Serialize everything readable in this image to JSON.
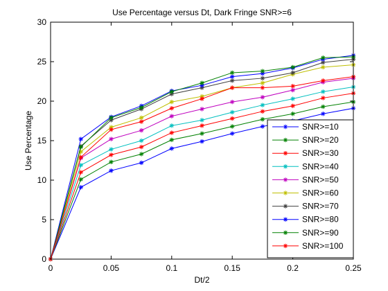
{
  "chart_data": {
    "type": "line",
    "title": "Use Percentage versus Dt, Dark Fringe SNR>=6",
    "xlabel": "Dt/2",
    "ylabel": "Use Percentage",
    "xlim": [
      0,
      0.25
    ],
    "ylim": [
      0,
      30
    ],
    "xticks": [
      "0",
      "0.05",
      "0.1",
      "0.15",
      "0.2",
      "0.25"
    ],
    "yticks": [
      "0",
      "5",
      "10",
      "15",
      "20",
      "25",
      "30"
    ],
    "grid": false,
    "legend_position": "lower-right",
    "marker": "asterisk",
    "x": [
      0,
      0.025,
      0.05,
      0.075,
      0.1,
      0.125,
      0.15,
      0.175,
      0.2,
      0.225,
      0.25
    ],
    "series": [
      {
        "name": "SNR>=10",
        "color": "#0000ff",
        "values": [
          0,
          9.1,
          11.2,
          12.2,
          14.0,
          14.9,
          15.9,
          16.8,
          17.5,
          18.4,
          19.1
        ]
      },
      {
        "name": "SNR>=20",
        "color": "#008000",
        "values": [
          0,
          10.1,
          12.3,
          13.3,
          15.1,
          15.9,
          16.8,
          17.7,
          18.4,
          19.3,
          19.9
        ]
      },
      {
        "name": "SNR>=30",
        "color": "#ff0000",
        "values": [
          0,
          11.0,
          13.2,
          14.2,
          16.0,
          16.9,
          17.8,
          18.7,
          19.4,
          20.4,
          21.0
        ]
      },
      {
        "name": "SNR>=40",
        "color": "#00bfbf",
        "values": [
          0,
          11.9,
          13.9,
          15.0,
          16.9,
          17.6,
          18.6,
          19.5,
          20.3,
          21.2,
          21.8
        ]
      },
      {
        "name": "SNR>=50",
        "color": "#bf00bf",
        "values": [
          0,
          12.8,
          15.2,
          16.3,
          18.1,
          19.0,
          19.9,
          20.5,
          21.4,
          22.4,
          22.9
        ]
      },
      {
        "name": "SNR>=60",
        "color": "#bfbf00",
        "values": [
          0,
          13.6,
          16.7,
          17.9,
          19.9,
          20.6,
          21.7,
          22.3,
          23.4,
          24.3,
          24.6
        ]
      },
      {
        "name": "SNR>=70",
        "color": "#404040",
        "values": [
          0,
          14.3,
          17.6,
          19.0,
          20.9,
          21.7,
          22.6,
          22.9,
          23.6,
          24.9,
          25.3
        ]
      },
      {
        "name": "SNR>=80",
        "color": "#0000ff",
        "values": [
          0,
          15.2,
          18.0,
          19.4,
          21.3,
          22.0,
          23.1,
          23.5,
          24.2,
          25.3,
          25.8
        ]
      },
      {
        "name": "SNR>=90",
        "color": "#008000",
        "values": [
          0,
          14.2,
          17.9,
          19.2,
          21.2,
          22.3,
          23.6,
          23.8,
          24.3,
          25.5,
          25.6
        ]
      },
      {
        "name": "SNR>=100",
        "color": "#ff0000",
        "values": [
          0,
          12.9,
          16.4,
          17.4,
          19.1,
          20.3,
          21.7,
          21.7,
          21.9,
          22.6,
          23.1
        ]
      }
    ]
  }
}
